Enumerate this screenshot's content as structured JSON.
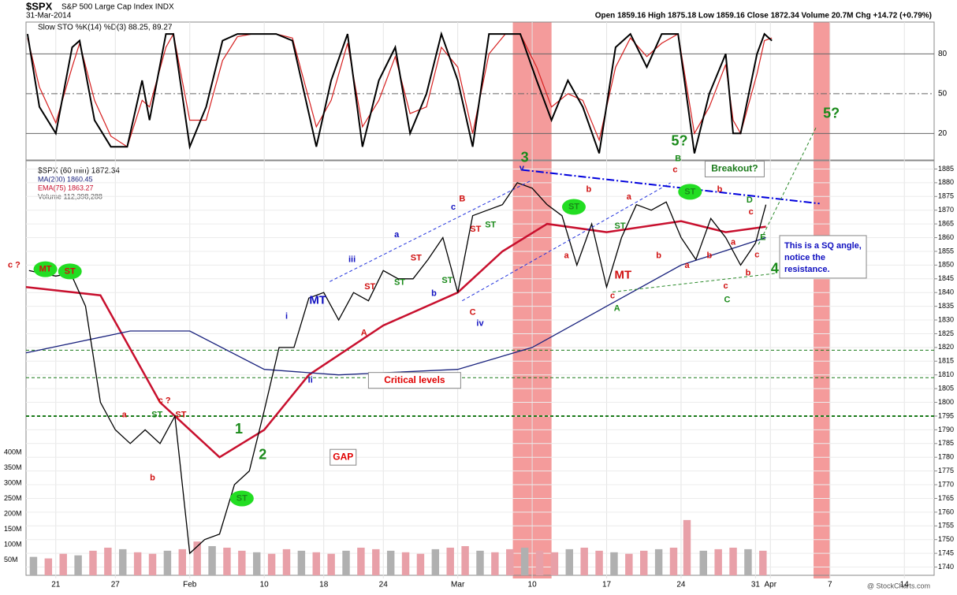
{
  "header": {
    "symbol": "$SPX",
    "name": "S&P 500 Large Cap Index INDX",
    "date": "31-Mar-2014",
    "quote": "Open 1859.16  High 1875.18  Low 1859.16  Close 1872.34  Volume 20.7M  Chg +14.72 (+0.79%)",
    "credit": "@ StockCharts.com"
  },
  "chart_data": [
    {
      "type": "line",
      "legend": "Slow STO %K(14) %D(3) 88.25, 89.27",
      "ylim": [
        0,
        104
      ],
      "yticks": [
        20,
        50,
        80
      ],
      "x": [
        -1.9,
        -1.1,
        0,
        1.1,
        1.6,
        2.6,
        3.7,
        4.8,
        5.8,
        6.3,
        7.4,
        7.9,
        9.0,
        10.1,
        11.2,
        12.2,
        13.2,
        14.8,
        15.9,
        17.5,
        18.5,
        19.6,
        20.6,
        21.7,
        22.8,
        23.8,
        24.9,
        25.9,
        27.0,
        28.0,
        29.1,
        30.2,
        31.2,
        32.3,
        33.3,
        34.4,
        35.4,
        36.5,
        37.6,
        38.6,
        39.7,
        40.7,
        41.8,
        42.9,
        43.9,
        45.0,
        45.5,
        46.0,
        47.1,
        47.6,
        48.1
      ],
      "series": [
        {
          "name": "%K",
          "color": "#000000",
          "values": [
            95,
            40,
            20,
            85,
            90,
            30,
            10,
            10,
            60,
            30,
            95,
            95,
            10,
            40,
            90,
            95,
            95,
            95,
            90,
            10,
            60,
            95,
            10,
            60,
            85,
            20,
            50,
            95,
            60,
            10,
            95,
            95,
            95,
            60,
            30,
            60,
            40,
            5,
            85,
            95,
            70,
            95,
            95,
            5,
            50,
            80,
            20,
            20,
            80,
            95,
            90
          ]
        },
        {
          "name": "%D",
          "color": "#d62020",
          "values": [
            92,
            55,
            28,
            70,
            88,
            45,
            18,
            10,
            45,
            40,
            85,
            95,
            30,
            30,
            75,
            93,
            95,
            95,
            92,
            25,
            45,
            88,
            25,
            45,
            78,
            35,
            40,
            85,
            70,
            20,
            80,
            95,
            95,
            70,
            40,
            50,
            45,
            15,
            70,
            92,
            78,
            88,
            95,
            20,
            40,
            72,
            30,
            20,
            65,
            90,
            92
          ]
        }
      ]
    },
    {
      "type": "price",
      "legend": "$SPX (60 min) 1872.34",
      "ylim": [
        1737,
        1888
      ],
      "yticks": [
        1740,
        1745,
        1750,
        1755,
        1760,
        1765,
        1770,
        1775,
        1780,
        1785,
        1790,
        1795,
        1800,
        1805,
        1810,
        1815,
        1820,
        1825,
        1830,
        1835,
        1840,
        1845,
        1850,
        1855,
        1860,
        1865,
        1870,
        1875,
        1880,
        1885
      ],
      "xlim": [
        -2,
        59
      ],
      "xticks": [
        {
          "value": 0,
          "label": "21"
        },
        {
          "value": 4,
          "label": "27"
        },
        {
          "value": 9,
          "label": "Feb"
        },
        {
          "value": 14,
          "label": "10"
        },
        {
          "value": 18,
          "label": "18"
        },
        {
          "value": 22,
          "label": "24"
        },
        {
          "value": 27,
          "label": "Mar"
        },
        {
          "value": 32,
          "label": "10"
        },
        {
          "value": 37,
          "label": "17"
        },
        {
          "value": 42,
          "label": "24"
        },
        {
          "value": 47,
          "label": "31"
        },
        {
          "value": 48,
          "label": "Apr"
        },
        {
          "value": 52,
          "label": "7"
        },
        {
          "value": 57,
          "label": "14"
        }
      ],
      "series": [
        {
          "name": "$SPX",
          "color": "#000000",
          "x": [
            -1.8,
            -1,
            0,
            1,
            2,
            3,
            4,
            5,
            6,
            7,
            8,
            9,
            10,
            11,
            12,
            13,
            14,
            15,
            16,
            17,
            18,
            19,
            20,
            21,
            22,
            23,
            24,
            25,
            26,
            27,
            28,
            29,
            30,
            31,
            32,
            33,
            34,
            35,
            36,
            37,
            38,
            39,
            40,
            41,
            42,
            43,
            44,
            45,
            46,
            47,
            47.7
          ],
          "values": [
            1848,
            1847,
            1846,
            1847,
            1835,
            1800,
            1790,
            1785,
            1790,
            1785,
            1795,
            1745,
            1750,
            1752,
            1770,
            1775,
            1797,
            1820,
            1820,
            1838,
            1840,
            1830,
            1840,
            1837,
            1848,
            1845,
            1845,
            1852,
            1860,
            1840,
            1868,
            1870,
            1872,
            1880,
            1878,
            1872,
            1868,
            1850,
            1865,
            1842,
            1860,
            1872,
            1870,
            1873,
            1860,
            1852,
            1867,
            1860,
            1850,
            1858,
            1872
          ]
        },
        {
          "name": "MA(200) 1860.45",
          "color": "#1a237e",
          "x": [
            -2,
            5,
            9,
            14,
            19,
            27,
            32,
            37,
            42,
            47.7
          ],
          "values": [
            1818,
            1826,
            1826,
            1812,
            1810,
            1812,
            1820,
            1835,
            1850,
            1860
          ]
        },
        {
          "name": "EMA(75) 1863.27",
          "color": "#c8102e",
          "x": [
            -2,
            3,
            7,
            11,
            14,
            17,
            22,
            27,
            30,
            33,
            37,
            42,
            45,
            47.7
          ],
          "values": [
            1842,
            1839,
            1800,
            1780,
            1790,
            1810,
            1828,
            1840,
            1855,
            1865,
            1862,
            1866,
            1862,
            1864
          ]
        }
      ],
      "volume": {
        "name": "Volume 112,398,288",
        "color": "#e8a0a8",
        "vlim": [
          0,
          1350
        ],
        "yticks": [
          {
            "value": 50,
            "label": "50M"
          },
          {
            "value": 100,
            "label": "100M"
          },
          {
            "value": 150,
            "label": "150M"
          },
          {
            "value": 200,
            "label": "200M"
          },
          {
            "value": 250,
            "label": "250M"
          },
          {
            "value": 300,
            "label": "300M"
          },
          {
            "value": 350,
            "label": "350M"
          },
          {
            "value": 400,
            "label": "400M"
          }
        ],
        "x": [
          -1.5,
          -0.5,
          0.5,
          1.5,
          2.5,
          3.5,
          4.5,
          5.5,
          6.5,
          7.5,
          8.5,
          9.5,
          10.5,
          11.5,
          12.5,
          13.5,
          14.5,
          15.5,
          16.5,
          17.5,
          18.5,
          19.5,
          20.5,
          21.5,
          22.5,
          23.5,
          24.5,
          25.5,
          26.5,
          27.5,
          28.5,
          29.5,
          30.5,
          31.5,
          32.5,
          33.5,
          34.5,
          35.5,
          36.5,
          37.5,
          38.5,
          39.5,
          40.5,
          41.5,
          42.4,
          43.5,
          44.5,
          45.5,
          46.5,
          47.5
        ],
        "values": [
          60,
          55,
          70,
          65,
          80,
          90,
          85,
          75,
          70,
          80,
          85,
          110,
          95,
          90,
          80,
          75,
          70,
          85,
          80,
          75,
          70,
          80,
          90,
          85,
          80,
          75,
          70,
          85,
          90,
          95,
          80,
          75,
          85,
          90,
          80,
          75,
          85,
          90,
          80,
          75,
          70,
          80,
          85,
          90,
          180,
          80,
          85,
          90,
          85,
          80
        ]
      },
      "hlines": [
        1795,
        1809,
        1819
      ],
      "highlights": [
        [
          30.7,
          33.3
        ],
        [
          50.9,
          52
        ]
      ],
      "trendlines": [
        {
          "x": [
            31.3,
            51.3
          ],
          "y": [
            1884.7,
            1872.4
          ],
          "color": "#0000dd"
        },
        {
          "x": [
            18.4,
            31.9
          ],
          "y": [
            1844,
            1880.7
          ],
          "color": "#2233dd"
        },
        {
          "x": [
            27.3,
            41.3
          ],
          "y": [
            1837,
            1880
          ],
          "color": "#2233dd"
        },
        {
          "x": [
            37.4,
            48.4
          ],
          "y": [
            1840.2,
            1847
          ],
          "color": "#2a8a2a"
        },
        {
          "x": [
            47.2,
            51.1
          ],
          "y": [
            1857.5,
            1900.5
          ],
          "color": "#2a8a2a"
        }
      ],
      "annotations": [
        {
          "text": "c ?",
          "x": -2.8,
          "y": 1850,
          "color": "#d01010"
        },
        {
          "text": "MT",
          "x": -0.7,
          "y": 1848.5,
          "color": "#d01010",
          "mark": "oval"
        },
        {
          "text": "ST",
          "x": 0.95,
          "y": 1847.7,
          "color": "#d01010",
          "mark": "oval"
        },
        {
          "text": "a",
          "x": 4.6,
          "y": 1795.4,
          "color": "#d01010"
        },
        {
          "text": "ST",
          "x": 6.8,
          "y": 1795.4,
          "color": "#1a8a1a"
        },
        {
          "text": "ST",
          "x": 8.4,
          "y": 1795.4,
          "color": "#d01010"
        },
        {
          "text": "c ?",
          "x": 7.3,
          "y": 1800.6,
          "color": "#d01010"
        },
        {
          "text": "b",
          "x": 6.5,
          "y": 1772.4,
          "color": "#d01010"
        },
        {
          "text": "ST",
          "x": 12.5,
          "y": 1765,
          "color": "#1a8a1a",
          "mark": "oval"
        },
        {
          "text": "1",
          "x": 12.3,
          "y": 1790,
          "color": "#1a8a1a",
          "mark": "big"
        },
        {
          "text": "2",
          "x": 13.9,
          "y": 1780.7,
          "color": "#1a8a1a",
          "mark": "big"
        },
        {
          "text": "GAP",
          "x": 19.3,
          "y": 1780,
          "color": "#e00000",
          "mark": "box"
        },
        {
          "text": "Critical levels",
          "x": 24.1,
          "y": 1808,
          "color": "#e00000",
          "mark": "box"
        },
        {
          "text": "i",
          "x": 15.5,
          "y": 1831.3,
          "color": "#1010c0"
        },
        {
          "text": "ii",
          "x": 17.1,
          "y": 1808,
          "color": "#1010c0"
        },
        {
          "text": "MT",
          "x": 17.6,
          "y": 1837,
          "color": "#1010c0",
          "mark": "mid"
        },
        {
          "text": "iii",
          "x": 19.9,
          "y": 1852,
          "color": "#1010c0"
        },
        {
          "text": "A",
          "x": 20.7,
          "y": 1825.3,
          "color": "#d01010"
        },
        {
          "text": "ST",
          "x": 21.1,
          "y": 1842,
          "color": "#d01010"
        },
        {
          "text": "ST",
          "x": 23.1,
          "y": 1843.6,
          "color": "#1a8a1a"
        },
        {
          "text": "a",
          "x": 22.9,
          "y": 1861,
          "color": "#1010c0"
        },
        {
          "text": "ST",
          "x": 24.2,
          "y": 1852.5,
          "color": "#d01010"
        },
        {
          "text": "b",
          "x": 25.4,
          "y": 1839.6,
          "color": "#1010c0"
        },
        {
          "text": "ST",
          "x": 26.3,
          "y": 1844.3,
          "color": "#1a8a1a"
        },
        {
          "text": "c",
          "x": 26.7,
          "y": 1871,
          "color": "#1010c0"
        },
        {
          "text": "B",
          "x": 27.3,
          "y": 1874,
          "color": "#d01010"
        },
        {
          "text": "ST",
          "x": 28.2,
          "y": 1863,
          "color": "#d01010"
        },
        {
          "text": "ST",
          "x": 29.2,
          "y": 1864.6,
          "color": "#1a8a1a"
        },
        {
          "text": "C",
          "x": 28.0,
          "y": 1832.7,
          "color": "#d01010"
        },
        {
          "text": "iv",
          "x": 28.5,
          "y": 1828.7,
          "color": "#1010c0"
        },
        {
          "text": "3",
          "x": 31.5,
          "y": 1889,
          "color": "#1a8a1a",
          "mark": "big"
        },
        {
          "text": "v",
          "x": 31.3,
          "y": 1885.3,
          "color": "#1010c0"
        },
        {
          "text": "ST",
          "x": 34.8,
          "y": 1871.2,
          "color": "#1a8a1a",
          "mark": "oval"
        },
        {
          "text": "b",
          "x": 35.8,
          "y": 1877.5,
          "color": "#d01010"
        },
        {
          "text": "a",
          "x": 34.3,
          "y": 1853.4,
          "color": "#d01010"
        },
        {
          "text": "MT",
          "x": 38.1,
          "y": 1846.2,
          "color": "#d01010",
          "mark": "mid"
        },
        {
          "text": "A",
          "x": 37.7,
          "y": 1834.2,
          "color": "#1a8a1a"
        },
        {
          "text": "ST",
          "x": 37.9,
          "y": 1864.2,
          "color": "#1a8a1a"
        },
        {
          "text": "a",
          "x": 38.5,
          "y": 1874.8,
          "color": "#d01010"
        },
        {
          "text": "b",
          "x": 40.5,
          "y": 1853.4,
          "color": "#d01010"
        },
        {
          "text": "c",
          "x": 37.4,
          "y": 1838.8,
          "color": "#d01010"
        },
        {
          "text": "5?",
          "x": 41.9,
          "y": 1895,
          "color": "#1a8a1a",
          "mark": "big"
        },
        {
          "text": "B",
          "x": 41.8,
          "y": 1888.7,
          "color": "#1a8a1a"
        },
        {
          "text": "c",
          "x": 41.6,
          "y": 1884.7,
          "color": "#d01010"
        },
        {
          "text": "ST",
          "x": 42.6,
          "y": 1876.7,
          "color": "#1a8a1a",
          "mark": "oval"
        },
        {
          "text": "b",
          "x": 44.6,
          "y": 1877.5,
          "color": "#d01010"
        },
        {
          "text": "a",
          "x": 42.4,
          "y": 1849.8,
          "color": "#d01010"
        },
        {
          "text": "b",
          "x": 43.9,
          "y": 1853.4,
          "color": "#d01010"
        },
        {
          "text": "c",
          "x": 46.7,
          "y": 1869.3,
          "color": "#d01010"
        },
        {
          "text": "D",
          "x": 46.6,
          "y": 1873.6,
          "color": "#1a8a1a"
        },
        {
          "text": "a",
          "x": 45.5,
          "y": 1858.2,
          "color": "#d01010"
        },
        {
          "text": "c",
          "x": 45.0,
          "y": 1842.4,
          "color": "#d01010"
        },
        {
          "text": "C",
          "x": 45.1,
          "y": 1837.3,
          "color": "#1a8a1a"
        },
        {
          "text": "b",
          "x": 46.5,
          "y": 1847.1,
          "color": "#d01010"
        },
        {
          "text": "E",
          "x": 47.5,
          "y": 1860,
          "color": "#1a8a1a"
        },
        {
          "text": "c",
          "x": 47.1,
          "y": 1853.6,
          "color": "#d01010"
        },
        {
          "text": "4",
          "x": 48.3,
          "y": 1848.5,
          "color": "#1a8a1a",
          "mark": "big"
        },
        {
          "text": "5?",
          "x": 52.1,
          "y": 1905,
          "color": "#1a8a1a",
          "mark": "big"
        },
        {
          "text": "Breakout?",
          "x": 45.6,
          "y": 1885,
          "color": "#1a7a1a",
          "mark": "box"
        },
        {
          "text": "This is a SQ angle, notice the resistance.",
          "x": 51.8,
          "y": 1853,
          "color": "#1010c0",
          "mark": "note"
        }
      ]
    }
  ]
}
